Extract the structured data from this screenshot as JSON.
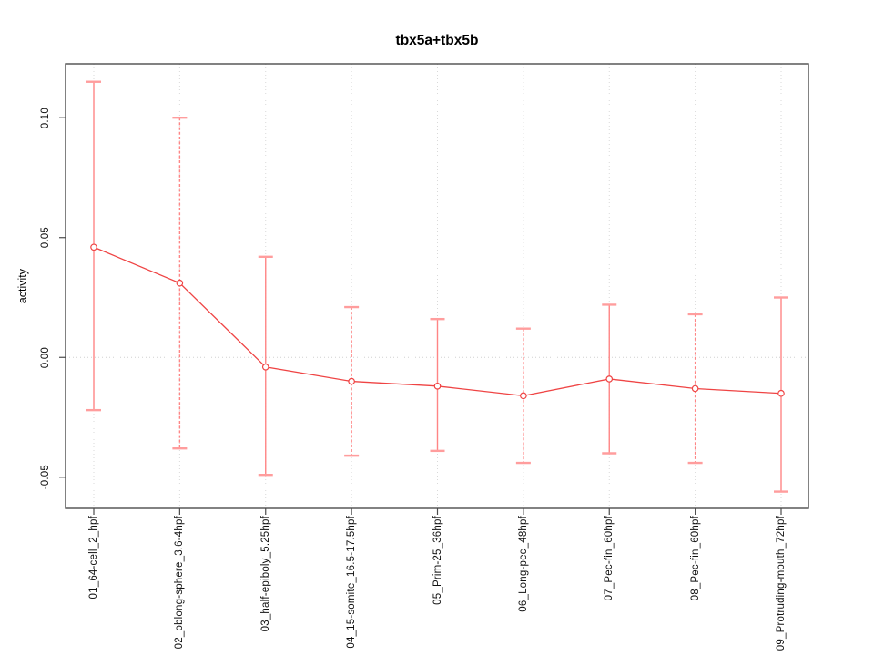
{
  "chart_data": {
    "type": "line",
    "title": "tbx5a+tbx5b",
    "xlabel": "",
    "ylabel": "activity",
    "categories": [
      "01_64-cell_2_hpf",
      "02_oblong-sphere_3.6-4hpf",
      "03_half-epiboly_5.25hpf",
      "04_15-somite_16.5-17.5hpf",
      "05_Prim-25_36hpf",
      "06_Long-pec_48hpf",
      "07_Pec-fin_60hpf",
      "08_Pec-fin_60hpf",
      "09_Protruding-mouth_72hpf"
    ],
    "series": [
      {
        "name": "activity",
        "values": [
          0.046,
          0.031,
          -0.004,
          -0.01,
          -0.012,
          -0.016,
          -0.009,
          -0.013,
          -0.015
        ],
        "upper": [
          0.115,
          0.1,
          0.042,
          0.021,
          0.016,
          0.012,
          0.022,
          0.018,
          0.025
        ],
        "lower": [
          -0.022,
          -0.038,
          -0.049,
          -0.041,
          -0.039,
          -0.044,
          -0.04,
          -0.044,
          -0.056
        ]
      }
    ],
    "error_bars": true,
    "marker": "open-circle",
    "ylim": [
      -0.063,
      0.1225
    ],
    "yticks": {
      "values": [
        0.1,
        0.05,
        0.0,
        -0.05
      ],
      "labels": [
        "0.10",
        "0.05",
        "0.00",
        "-0.05"
      ]
    },
    "grid": {
      "vertical_dotted_at_each_category": true,
      "horizontal_dotted_at_zero": true
    },
    "legend_position": "none",
    "colors": {
      "series_line": "#ef4444",
      "marker_stroke": "#ef4444",
      "marker_fill": "#ffffff",
      "error_bar": "#ff8585",
      "error_cap": "#ff9d9d",
      "grid": "#d9d9d9",
      "zero_line": "#d0d0d0",
      "box": "#4c4c4c",
      "tick": "#4c4c4c",
      "text": "#111111"
    }
  }
}
